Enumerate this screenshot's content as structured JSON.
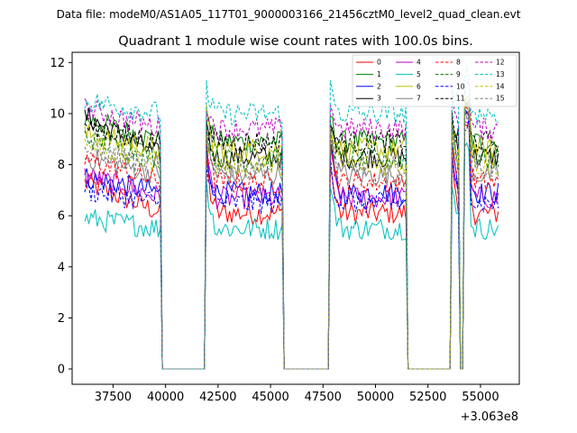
{
  "chart_data": {
    "type": "line",
    "suptitle": "Data file: modeM0/AS1A05_117T01_9000003166_21456cztM0_level2_quad_clean.evt",
    "title": "Quadrant 1 module wise count rates with 100.0s bins.",
    "xlabel": "",
    "ylabel": "",
    "x_offset_label": "+3.063e8",
    "xlim": [
      35550,
      56850
    ],
    "ylim": [
      -0.6,
      12.4
    ],
    "xticks": [
      37500,
      40000,
      42500,
      45000,
      47500,
      50000,
      52500,
      55000
    ],
    "xtick_labels": [
      "37500",
      "40000",
      "42500",
      "45000",
      "47500",
      "50000",
      "52500",
      "55000"
    ],
    "yticks": [
      0,
      2,
      4,
      6,
      8,
      10,
      12
    ],
    "ytick_labels": [
      "0",
      "2",
      "4",
      "6",
      "8",
      "10",
      "12"
    ],
    "bin_seconds": 100,
    "x_start": 36150,
    "x_end": 55850,
    "gaps": [
      [
        39850,
        41850
      ],
      [
        45650,
        47750
      ],
      [
        51550,
        53550
      ],
      [
        54050,
        54150
      ]
    ],
    "legend_position": "upper right",
    "series": [
      {
        "name": "0",
        "color": "#ff0000",
        "dash": "solid",
        "level": 6.1,
        "early": 7.3,
        "spike": 10.0
      },
      {
        "name": "1",
        "color": "#008000",
        "dash": "solid",
        "level": 8.9,
        "early": 9.8,
        "spike": 10.8
      },
      {
        "name": "2",
        "color": "#0000ff",
        "dash": "solid",
        "level": 6.9,
        "early": 7.5,
        "spike": 10.1
      },
      {
        "name": "3",
        "color": "#000000",
        "dash": "solid",
        "level": 8.3,
        "early": 9.9,
        "spike": 10.6
      },
      {
        "name": "4",
        "color": "#bf00bf",
        "dash": "solid",
        "level": 6.7,
        "early": 7.6,
        "spike": 10.2
      },
      {
        "name": "5",
        "color": "#00bfbf",
        "dash": "solid",
        "level": 5.5,
        "early": 5.9,
        "spike": 9.0
      },
      {
        "name": "6",
        "color": "#bfbf00",
        "dash": "solid",
        "level": 8.6,
        "early": 9.2,
        "spike": 10.9
      },
      {
        "name": "7",
        "color": "#808080",
        "dash": "solid",
        "level": 7.6,
        "early": 8.3,
        "spike": 10.3
      },
      {
        "name": "8",
        "color": "#ff0000",
        "dash": "dashed",
        "level": 7.3,
        "early": 8.2,
        "spike": 10.4
      },
      {
        "name": "9",
        "color": "#008000",
        "dash": "dashed",
        "level": 8.2,
        "early": 9.1,
        "spike": 10.5
      },
      {
        "name": "10",
        "color": "#0000ff",
        "dash": "dashed",
        "level": 6.5,
        "early": 7.0,
        "spike": 9.8
      },
      {
        "name": "11",
        "color": "#000000",
        "dash": "dashed",
        "level": 8.9,
        "early": 9.5,
        "spike": 10.3
      },
      {
        "name": "12",
        "color": "#bf00bf",
        "dash": "dashed",
        "level": 9.4,
        "early": 10.2,
        "spike": 11.4
      },
      {
        "name": "13",
        "color": "#00bfbf",
        "dash": "dashed",
        "level": 10.0,
        "early": 10.5,
        "spike": 11.9
      },
      {
        "name": "14",
        "color": "#bfbf00",
        "dash": "dashed",
        "level": 8.0,
        "early": 8.8,
        "spike": 10.6
      },
      {
        "name": "15",
        "color": "#808080",
        "dash": "dashed",
        "level": 7.9,
        "early": 8.6,
        "spike": 10.4
      }
    ]
  }
}
